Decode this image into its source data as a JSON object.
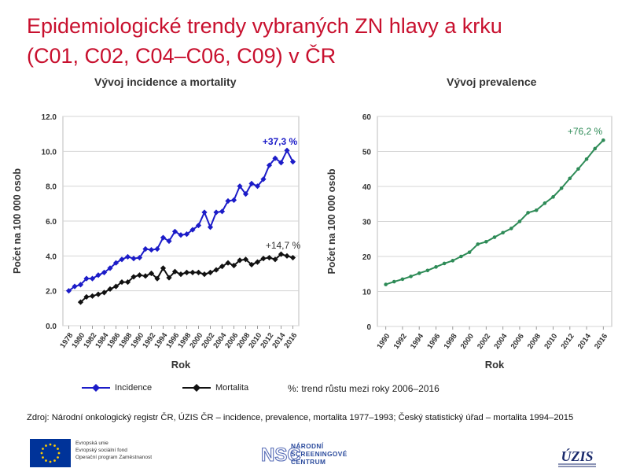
{
  "slide": {
    "title_line1": "Epidemiologické trendy vybraných ZN hlavy a krku",
    "title_line2": "(C01, C02, C04–C06, C09) v ČR",
    "legend_note": "%: trend růstu mezi roky 2006–2016",
    "source": "Zdroj: Národní onkologický registr ČR, ÚZIS ČR – incidence, prevalence, mortalita 1977–1993; Český statistický úřad – mortalita 1994–2015"
  },
  "footer": {
    "eu_lines": [
      "Evropská unie",
      "Evropský sociální fond",
      "Operační program Zaměstnanost"
    ],
    "nsc_lines": [
      "NÁRODNÍ",
      "SCREENINGOVÉ",
      "CENTRUM"
    ],
    "nsc_logo_text": "NSC",
    "uzis_logo_text": "ÚZIS"
  },
  "colors": {
    "title": "#c8102e",
    "incidence": "#1c1cc8",
    "mortality": "#111111",
    "prevalence": "#2e8b57",
    "eu_flag": "#003399",
    "eu_star": "#ffcc00",
    "nsc": "#2a4a9c"
  },
  "chart_data": [
    {
      "type": "line",
      "title": "Vývoj incidence a mortality",
      "xlabel": "Rok",
      "ylabel": "Počet na 100 000 osob",
      "ylim": [
        0,
        12
      ],
      "yticks": [
        "0.0",
        "2.0",
        "4.0",
        "6.0",
        "8.0",
        "10.0",
        "12.0"
      ],
      "xlim": [
        1977,
        2017
      ],
      "xticks": [
        "1978",
        "1980",
        "1982",
        "1984",
        "1986",
        "1988",
        "1990",
        "1992",
        "1994",
        "1996",
        "1998",
        "2000",
        "2002",
        "2004",
        "2006",
        "2008",
        "2010",
        "2012",
        "2014",
        "2016"
      ],
      "grid": true,
      "legend_position": "bottom",
      "series": [
        {
          "name": "Incidence",
          "marker": "diamond",
          "x": [
            1978,
            1979,
            1980,
            1981,
            1982,
            1983,
            1984,
            1985,
            1986,
            1987,
            1988,
            1989,
            1990,
            1991,
            1992,
            1993,
            1994,
            1995,
            1996,
            1997,
            1998,
            1999,
            2000,
            2001,
            2002,
            2003,
            2004,
            2005,
            2006,
            2007,
            2008,
            2009,
            2010,
            2011,
            2012,
            2013,
            2014,
            2015,
            2016
          ],
          "values": [
            2.0,
            2.25,
            2.35,
            2.7,
            2.7,
            2.9,
            3.05,
            3.3,
            3.6,
            3.8,
            3.95,
            3.85,
            3.9,
            4.4,
            4.35,
            4.4,
            5.05,
            4.85,
            5.4,
            5.2,
            5.25,
            5.5,
            5.75,
            6.5,
            5.65,
            6.5,
            6.55,
            7.15,
            7.2,
            8.0,
            7.55,
            8.15,
            8.0,
            8.4,
            9.2,
            9.6,
            9.35,
            10.05,
            9.4
          ],
          "annotation": "+37,3 %"
        },
        {
          "name": "Mortalita",
          "marker": "diamond",
          "x": [
            1980,
            1981,
            1982,
            1983,
            1984,
            1985,
            1986,
            1987,
            1988,
            1989,
            1990,
            1991,
            1992,
            1993,
            1994,
            1995,
            1996,
            1997,
            1998,
            1999,
            2000,
            2001,
            2002,
            2003,
            2004,
            2005,
            2006,
            2007,
            2008,
            2009,
            2010,
            2011,
            2012,
            2013,
            2014,
            2015,
            2016
          ],
          "values": [
            1.35,
            1.65,
            1.7,
            1.8,
            1.9,
            2.1,
            2.25,
            2.5,
            2.5,
            2.8,
            2.9,
            2.85,
            3.0,
            2.7,
            3.3,
            2.75,
            3.1,
            2.95,
            3.05,
            3.05,
            3.05,
            2.95,
            3.05,
            3.2,
            3.4,
            3.6,
            3.45,
            3.75,
            3.8,
            3.5,
            3.65,
            3.85,
            3.9,
            3.8,
            4.1,
            4.0,
            3.9
          ],
          "annotation": "+14,7 %"
        }
      ]
    },
    {
      "type": "line",
      "title": "Vývoj prevalence",
      "xlabel": "Rok",
      "ylabel": "Počet na 100 000 osob",
      "ylim": [
        0,
        60
      ],
      "yticks": [
        "0",
        "10",
        "20",
        "30",
        "40",
        "50",
        "60"
      ],
      "xlim": [
        1989,
        2017
      ],
      "xticks": [
        "1990",
        "1992",
        "1994",
        "1996",
        "1998",
        "2000",
        "2002",
        "2004",
        "2006",
        "2008",
        "2010",
        "2012",
        "2014",
        "2016"
      ],
      "grid": true,
      "series": [
        {
          "marker": "circle",
          "x": [
            1990,
            1991,
            1992,
            1993,
            1994,
            1995,
            1996,
            1997,
            1998,
            1999,
            2000,
            2001,
            2002,
            2003,
            2004,
            2005,
            2006,
            2007,
            2008,
            2009,
            2010,
            2011,
            2012,
            2013,
            2014,
            2015,
            2016
          ],
          "values": [
            12.0,
            12.8,
            13.5,
            14.3,
            15.2,
            16.0,
            17.0,
            18.0,
            18.8,
            20.0,
            21.2,
            23.5,
            24.2,
            25.5,
            26.8,
            28.0,
            30.0,
            32.5,
            33.2,
            35.2,
            37.0,
            39.5,
            42.3,
            45.0,
            47.8,
            50.8,
            53.2
          ],
          "annotation": "+76,2 %"
        }
      ]
    }
  ]
}
